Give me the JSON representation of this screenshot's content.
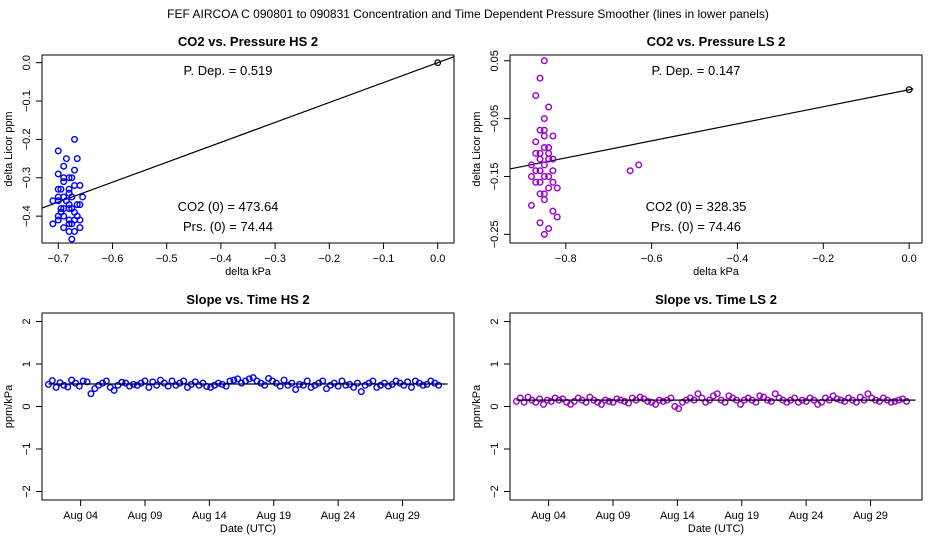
{
  "figure_title": "FEF   AIRCOA C   090801 to 090831   Concentration and Time Dependent Pressure Smoother (lines in lower panels)",
  "colors": {
    "hs": "#0000ff",
    "ls": "#9900cc",
    "line": "#000000"
  },
  "chart_data": [
    {
      "type": "scatter",
      "id": "co2-pressure-hs2",
      "title": "CO2 vs. Pressure HS 2",
      "xlabel": "delta kPa",
      "ylabel": "delta Licor ppm",
      "xlim": [
        -0.73,
        0.03
      ],
      "ylim": [
        -0.47,
        0.02
      ],
      "xticks": [
        -0.7,
        -0.6,
        -0.5,
        -0.4,
        -0.3,
        -0.2,
        -0.1,
        0.0
      ],
      "xtick_labels": [
        "−0.7",
        "−0.6",
        "−0.5",
        "−0.4",
        "−0.3",
        "−0.2",
        "−0.1",
        "0.0"
      ],
      "yticks": [
        0.0,
        -0.1,
        -0.2,
        -0.3,
        -0.4
      ],
      "ytick_labels": [
        "0.0",
        "−0.1",
        "−0.2",
        "−0.3",
        "−0.4"
      ],
      "annotations": {
        "p_dep": "P. Dep. =  0.519",
        "co2_0": "CO2 (0) =  473.64",
        "prs_0": "Prs. (0) =  74.44"
      },
      "fit_line": {
        "x": [
          -0.73,
          0.03
        ],
        "y": [
          -0.379,
          0.0156
        ]
      },
      "reference_point": {
        "x": 0.0,
        "y": 0.0
      },
      "series": [
        {
          "name": "HS 2",
          "color": "#0000ff",
          "points": [
            [
              -0.7,
              -0.36
            ],
            [
              -0.69,
              -0.38
            ],
            [
              -0.68,
              -0.42
            ],
            [
              -0.675,
              -0.35
            ],
            [
              -0.68,
              -0.33
            ],
            [
              -0.69,
              -0.31
            ],
            [
              -0.7,
              -0.29
            ],
            [
              -0.66,
              -0.37
            ],
            [
              -0.665,
              -0.4
            ],
            [
              -0.67,
              -0.44
            ],
            [
              -0.68,
              -0.41
            ],
            [
              -0.695,
              -0.38
            ],
            [
              -0.7,
              -0.4
            ],
            [
              -0.71,
              -0.42
            ],
            [
              -0.69,
              -0.27
            ],
            [
              -0.685,
              -0.25
            ],
            [
              -0.67,
              -0.2
            ],
            [
              -0.675,
              -0.3
            ],
            [
              -0.66,
              -0.32
            ],
            [
              -0.7,
              -0.23
            ],
            [
              -0.695,
              -0.33
            ],
            [
              -0.67,
              -0.39
            ],
            [
              -0.675,
              -0.46
            ],
            [
              -0.66,
              -0.43
            ],
            [
              -0.68,
              -0.37
            ],
            [
              -0.69,
              -0.35
            ],
            [
              -0.71,
              -0.36
            ],
            [
              -0.67,
              -0.28
            ],
            [
              -0.665,
              -0.25
            ],
            [
              -0.68,
              -0.3
            ],
            [
              -0.69,
              -0.4
            ],
            [
              -0.7,
              -0.41
            ],
            [
              -0.675,
              -0.38
            ],
            [
              -0.66,
              -0.41
            ],
            [
              -0.655,
              -0.35
            ],
            [
              -0.68,
              -0.44
            ],
            [
              -0.69,
              -0.43
            ],
            [
              -0.7,
              -0.35
            ],
            [
              -0.695,
              -0.39
            ],
            [
              -0.675,
              -0.42
            ],
            [
              -0.665,
              -0.37
            ],
            [
              -0.68,
              -0.34
            ],
            [
              -0.67,
              -0.32
            ],
            [
              -0.685,
              -0.36
            ],
            [
              -0.69,
              -0.3
            ],
            [
              -0.7,
              -0.33
            ],
            [
              -0.68,
              -0.38
            ],
            [
              -0.67,
              -0.41
            ]
          ]
        }
      ]
    },
    {
      "type": "scatter",
      "id": "co2-pressure-ls2",
      "title": "CO2 vs. Pressure LS 2",
      "xlabel": "delta kPa",
      "ylabel": "delta Licor ppm",
      "xlim": [
        -0.93,
        0.03
      ],
      "ylim": [
        -0.265,
        0.06
      ],
      "xticks": [
        -0.8,
        -0.6,
        -0.4,
        -0.2,
        0.0
      ],
      "xtick_labels": [
        "−0.8",
        "−0.6",
        "−0.4",
        "−0.2",
        "0.0"
      ],
      "yticks": [
        0.05,
        -0.05,
        -0.15,
        -0.25
      ],
      "ytick_labels": [
        "0.05",
        "−0.05",
        "−0.15",
        "−0.25"
      ],
      "annotations": {
        "p_dep": "P. Dep. =  0.147",
        "co2_0": "CO2 (0) =  328.35",
        "prs_0": "Prs. (0) =  74.46"
      },
      "fit_line": {
        "x": [
          -0.93,
          0.01
        ],
        "y": [
          -0.137,
          0.0014
        ]
      },
      "reference_point": {
        "x": 0.0,
        "y": 0.0
      },
      "series": [
        {
          "name": "LS 2",
          "color": "#9900cc",
          "points": [
            [
              -0.85,
              0.05
            ],
            [
              -0.86,
              0.02
            ],
            [
              -0.87,
              -0.01
            ],
            [
              -0.84,
              -0.03
            ],
            [
              -0.85,
              -0.05
            ],
            [
              -0.86,
              -0.07
            ],
            [
              -0.83,
              -0.08
            ],
            [
              -0.87,
              -0.09
            ],
            [
              -0.85,
              -0.1
            ],
            [
              -0.84,
              -0.11
            ],
            [
              -0.86,
              -0.12
            ],
            [
              -0.88,
              -0.13
            ],
            [
              -0.83,
              -0.14
            ],
            [
              -0.85,
              -0.15
            ],
            [
              -0.87,
              -0.16
            ],
            [
              -0.84,
              -0.17
            ],
            [
              -0.86,
              -0.18
            ],
            [
              -0.85,
              -0.19
            ],
            [
              -0.88,
              -0.2
            ],
            [
              -0.83,
              -0.21
            ],
            [
              -0.86,
              -0.23
            ],
            [
              -0.85,
              -0.25
            ],
            [
              -0.84,
              -0.24
            ],
            [
              -0.82,
              -0.22
            ],
            [
              -0.87,
              -0.11
            ],
            [
              -0.85,
              -0.13
            ],
            [
              -0.84,
              -0.12
            ],
            [
              -0.86,
              -0.14
            ],
            [
              -0.83,
              -0.12
            ],
            [
              -0.85,
              -0.08
            ],
            [
              -0.84,
              -0.1
            ],
            [
              -0.86,
              -0.16
            ],
            [
              -0.88,
              -0.15
            ],
            [
              -0.82,
              -0.17
            ],
            [
              -0.85,
              -0.18
            ],
            [
              -0.83,
              -0.16
            ],
            [
              -0.87,
              -0.14
            ],
            [
              -0.84,
              -0.15
            ],
            [
              -0.86,
              -0.11
            ],
            [
              -0.85,
              -0.07
            ],
            [
              -0.65,
              -0.14
            ],
            [
              -0.63,
              -0.13
            ]
          ]
        }
      ]
    },
    {
      "type": "line",
      "id": "slope-time-hs2",
      "title": "Slope vs. Time HS 2",
      "xlabel": "Date (UTC)",
      "ylabel": "ppm/kPa",
      "xlim": [
        0,
        32
      ],
      "ylim": [
        -2.2,
        2.2
      ],
      "xticks": [
        3,
        8,
        13,
        18,
        23,
        28
      ],
      "xtick_labels": [
        "Aug 04",
        "Aug 09",
        "Aug 14",
        "Aug 19",
        "Aug 24",
        "Aug 29"
      ],
      "yticks": [
        2,
        1,
        0,
        -1,
        -2
      ],
      "ytick_labels": [
        "2",
        "1",
        "0",
        "−1",
        "−2"
      ],
      "smoother": {
        "x": [
          0.5,
          31.5
        ],
        "y": [
          0.53,
          0.53
        ]
      },
      "series": [
        {
          "name": "HS 2",
          "color": "#0000ff",
          "x": [
            0.5,
            0.8,
            1.1,
            1.4,
            1.7,
            2.0,
            2.3,
            2.6,
            2.9,
            3.2,
            3.5,
            3.8,
            4.1,
            4.4,
            4.7,
            5.0,
            5.3,
            5.6,
            5.9,
            6.2,
            6.5,
            6.8,
            7.1,
            7.4,
            7.7,
            8.0,
            8.3,
            8.6,
            8.9,
            9.2,
            9.5,
            9.8,
            10.1,
            10.4,
            10.7,
            11.0,
            11.3,
            11.6,
            11.9,
            12.2,
            12.5,
            12.8,
            13.1,
            13.4,
            13.7,
            14.0,
            14.3,
            14.6,
            14.9,
            15.2,
            15.5,
            15.8,
            16.1,
            16.4,
            16.7,
            17.0,
            17.3,
            17.6,
            17.9,
            18.2,
            18.5,
            18.8,
            19.1,
            19.4,
            19.7,
            20.0,
            20.3,
            20.6,
            20.9,
            21.2,
            21.5,
            21.8,
            22.1,
            22.4,
            22.7,
            23.0,
            23.3,
            23.6,
            23.9,
            24.2,
            24.5,
            24.8,
            25.1,
            25.4,
            25.7,
            26.0,
            26.3,
            26.6,
            26.9,
            27.2,
            27.5,
            27.8,
            28.1,
            28.4,
            28.7,
            29.0,
            29.3,
            29.6,
            29.9,
            30.2,
            30.5,
            30.8
          ],
          "values": [
            0.52,
            0.61,
            0.45,
            0.56,
            0.5,
            0.46,
            0.62,
            0.55,
            0.48,
            0.6,
            0.58,
            0.3,
            0.42,
            0.5,
            0.55,
            0.6,
            0.45,
            0.38,
            0.5,
            0.57,
            0.55,
            0.48,
            0.52,
            0.5,
            0.55,
            0.6,
            0.45,
            0.58,
            0.5,
            0.62,
            0.55,
            0.48,
            0.6,
            0.5,
            0.55,
            0.6,
            0.45,
            0.52,
            0.58,
            0.5,
            0.55,
            0.47,
            0.45,
            0.5,
            0.55,
            0.52,
            0.48,
            0.6,
            0.62,
            0.65,
            0.55,
            0.6,
            0.65,
            0.68,
            0.6,
            0.55,
            0.5,
            0.66,
            0.6,
            0.55,
            0.48,
            0.62,
            0.5,
            0.55,
            0.4,
            0.52,
            0.5,
            0.6,
            0.45,
            0.5,
            0.55,
            0.6,
            0.42,
            0.5,
            0.55,
            0.48,
            0.6,
            0.5,
            0.52,
            0.45,
            0.55,
            0.35,
            0.5,
            0.55,
            0.6,
            0.45,
            0.5,
            0.55,
            0.48,
            0.52,
            0.6,
            0.55,
            0.5,
            0.58,
            0.45,
            0.6,
            0.55,
            0.5,
            0.52,
            0.6,
            0.55,
            0.5
          ]
        }
      ]
    },
    {
      "type": "line",
      "id": "slope-time-ls2",
      "title": "Slope vs. Time LS 2",
      "xlabel": "Date (UTC)",
      "ylabel": "ppm/kPa",
      "xlim": [
        0,
        32
      ],
      "ylim": [
        -2.2,
        2.2
      ],
      "xticks": [
        3,
        8,
        13,
        18,
        23,
        28
      ],
      "xtick_labels": [
        "Aug 04",
        "Aug 09",
        "Aug 14",
        "Aug 19",
        "Aug 24",
        "Aug 29"
      ],
      "yticks": [
        2,
        1,
        0,
        -1,
        -2
      ],
      "ytick_labels": [
        "2",
        "1",
        "0",
        "−1",
        "−2"
      ],
      "smoother": {
        "x": [
          0.5,
          31.5
        ],
        "y": [
          0.15,
          0.15
        ]
      },
      "series": [
        {
          "name": "LS 2",
          "color": "#9900cc",
          "x": [
            0.5,
            0.8,
            1.1,
            1.4,
            1.7,
            2.0,
            2.3,
            2.6,
            2.9,
            3.2,
            3.5,
            3.8,
            4.1,
            4.4,
            4.7,
            5.0,
            5.3,
            5.6,
            5.9,
            6.2,
            6.5,
            6.8,
            7.1,
            7.4,
            7.7,
            8.0,
            8.3,
            8.6,
            8.9,
            9.2,
            9.5,
            9.8,
            10.1,
            10.4,
            10.7,
            11.0,
            11.3,
            11.6,
            11.9,
            12.2,
            12.5,
            12.8,
            13.1,
            13.4,
            13.7,
            14.0,
            14.3,
            14.6,
            14.9,
            15.2,
            15.5,
            15.8,
            16.1,
            16.4,
            16.7,
            17.0,
            17.3,
            17.6,
            17.9,
            18.2,
            18.5,
            18.8,
            19.1,
            19.4,
            19.7,
            20.0,
            20.3,
            20.6,
            20.9,
            21.2,
            21.5,
            21.8,
            22.1,
            22.4,
            22.7,
            23.0,
            23.3,
            23.6,
            23.9,
            24.2,
            24.5,
            24.8,
            25.1,
            25.4,
            25.7,
            26.0,
            26.3,
            26.6,
            26.9,
            27.2,
            27.5,
            27.8,
            28.1,
            28.4,
            28.7,
            29.0,
            29.3,
            29.6,
            29.9,
            30.2,
            30.5,
            30.8
          ],
          "values": [
            0.12,
            0.2,
            0.1,
            0.22,
            0.15,
            0.1,
            0.18,
            0.05,
            0.15,
            0.12,
            0.2,
            0.15,
            0.18,
            0.1,
            0.05,
            0.12,
            0.2,
            0.15,
            0.1,
            0.22,
            0.15,
            0.1,
            0.05,
            0.15,
            0.12,
            0.1,
            0.18,
            0.15,
            0.12,
            0.08,
            0.2,
            0.15,
            0.22,
            0.18,
            0.12,
            0.1,
            0.05,
            0.15,
            0.12,
            0.15,
            0.2,
            0.0,
            -0.05,
            0.1,
            0.15,
            0.2,
            0.15,
            0.3,
            0.2,
            0.1,
            0.15,
            0.25,
            0.3,
            0.15,
            0.1,
            0.25,
            0.2,
            0.15,
            0.05,
            0.15,
            0.2,
            0.15,
            0.1,
            0.25,
            0.22,
            0.15,
            0.12,
            0.3,
            0.2,
            0.15,
            0.1,
            0.15,
            0.2,
            0.1,
            0.15,
            0.12,
            0.2,
            0.15,
            0.05,
            0.1,
            0.2,
            0.15,
            0.25,
            0.18,
            0.15,
            0.12,
            0.2,
            0.15,
            0.1,
            0.22,
            0.15,
            0.3,
            0.2,
            0.15,
            0.12,
            0.2,
            0.15,
            0.1,
            0.12,
            0.15,
            0.18,
            0.12
          ]
        }
      ]
    }
  ]
}
